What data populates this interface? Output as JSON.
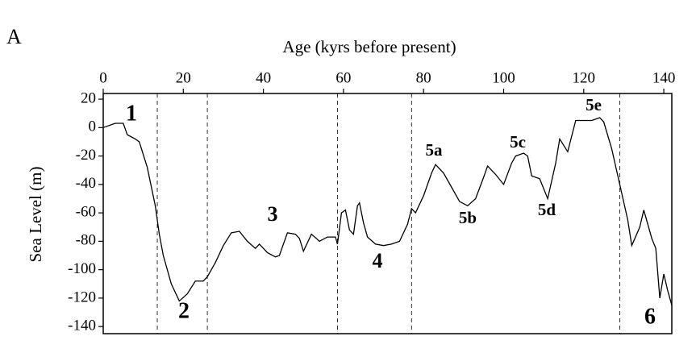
{
  "chart_data": {
    "type": "line",
    "panel_label": "A",
    "xlabel": "Age (kyrs before present)",
    "ylabel": "Sea Level (m)",
    "x": [
      0,
      3,
      5,
      6,
      8,
      9,
      11,
      13,
      14,
      15,
      17,
      19,
      21,
      23,
      25,
      26,
      28,
      30,
      32,
      34,
      36,
      38,
      39,
      41,
      43,
      44,
      46,
      48,
      49,
      50,
      52,
      54,
      56,
      58,
      58.5,
      59.5,
      60.5,
      61.5,
      62.5,
      63.5,
      64,
      65,
      66,
      68,
      70,
      72,
      74,
      76,
      77,
      78,
      80,
      82,
      83,
      85,
      87,
      89,
      91,
      93,
      95,
      96,
      98,
      100,
      102,
      103,
      105,
      106,
      107,
      109,
      111,
      113,
      114,
      116,
      118,
      120,
      122,
      124,
      125,
      127,
      129,
      131,
      132,
      134,
      135,
      137,
      138,
      139,
      140,
      141,
      142
    ],
    "series": [
      {
        "color": "#000000",
        "values": [
          0,
          3,
          3,
          -5,
          -8,
          -10,
          -28,
          -55,
          -75,
          -90,
          -110,
          -122,
          -117,
          -108,
          -108,
          -105,
          -95,
          -83,
          -74,
          -73,
          -80,
          -85,
          -82,
          -88,
          -91,
          -90,
          -74,
          -75,
          -78,
          -87,
          -75,
          -80,
          -77,
          -77,
          -82,
          -60,
          -58,
          -72,
          -75,
          -55,
          -53,
          -67,
          -77,
          -82,
          -83,
          -82,
          -80,
          -68,
          -57,
          -60,
          -48,
          -32,
          -26,
          -32,
          -42,
          -52,
          -55,
          -50,
          -35,
          -27,
          -33,
          -40,
          -25,
          -20,
          -18,
          -20,
          -34,
          -36,
          -50,
          -25,
          -8,
          -17,
          5,
          5,
          5,
          7,
          4,
          -15,
          -40,
          -65,
          -83,
          -70,
          -58,
          -78,
          -85,
          -120,
          -103,
          -115,
          -125
        ]
      }
    ],
    "xlim": [
      0,
      142
    ],
    "ylim": [
      -145,
      24
    ],
    "xticks": [
      0,
      20,
      40,
      60,
      80,
      100,
      120,
      140
    ],
    "yticks": [
      20,
      0,
      -20,
      -40,
      -60,
      -80,
      -100,
      -120,
      -140
    ],
    "vlines": [
      13.5,
      26,
      58.5,
      77,
      129
    ],
    "annotations": [
      "1",
      "2",
      "3",
      "4",
      "5a",
      "5b",
      "5c",
      "5d",
      "5e",
      "6"
    ]
  }
}
